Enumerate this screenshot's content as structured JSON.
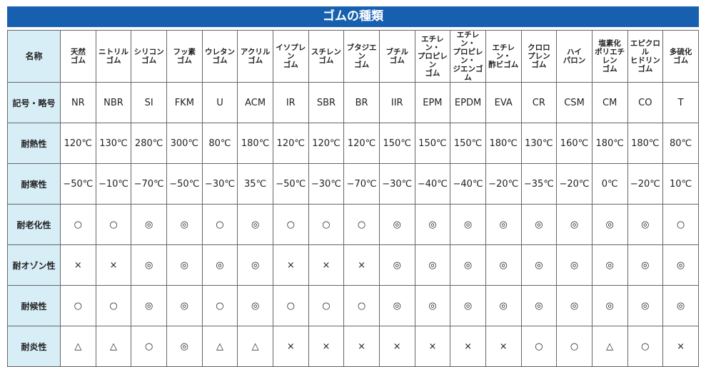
{
  "title": "ゴムの種類",
  "table": {
    "rows": [
      [
        "名称",
        "天然\nゴム",
        "ニトリル\nゴム",
        "シリコン\nゴム",
        "フッ素\nゴム",
        "ウレタン\nゴム",
        "アクリル\nゴム",
        "イソプレン\nゴム",
        "スチレン\nゴム",
        "ブタジエン\nゴム",
        "ブチル\nゴム",
        "エチレン・\nプロピレン\nゴム",
        "エチレン・\nプロピレン・\nジエンゴム",
        "エチレン・\n酢ビゴム",
        "クロロ\nプレン\nゴム",
        "ハイ\nパロン",
        "塩素化\nポリエチレン\nゴム",
        "エピクロル\nヒドリン\nゴム",
        "多硫化\nゴム"
      ],
      [
        "記号・略号",
        "NR",
        "NBR",
        "SI",
        "FKM",
        "U",
        "ACM",
        "IR",
        "SBR",
        "BR",
        "IIR",
        "EPM",
        "EPDM",
        "EVA",
        "CR",
        "CSM",
        "CM",
        "CO",
        "T"
      ],
      [
        "耐熱性",
        "120℃",
        "130℃",
        "280℃",
        "300℃",
        "80℃",
        "180℃",
        "120℃",
        "120℃",
        "120℃",
        "150℃",
        "150℃",
        "150℃",
        "180℃",
        "130℃",
        "160℃",
        "180℃",
        "180℃",
        "80℃"
      ],
      [
        "耐寒性",
        "−50℃",
        "−10℃",
        "−70℃",
        "−50℃",
        "−30℃",
        "35℃",
        "−50℃",
        "−30℃",
        "−70℃",
        "−30℃",
        "−40℃",
        "−40℃",
        "−20℃",
        "−35℃",
        "−20℃",
        "0℃",
        "−20℃",
        "10℃"
      ],
      [
        "耐老化性",
        "○",
        "○",
        "◎",
        "◎",
        "○",
        "◎",
        "○",
        "○",
        "○",
        "◎",
        "◎",
        "◎",
        "◎",
        "◎",
        "◎",
        "◎",
        "◎",
        "○"
      ],
      [
        "耐オゾン性",
        "×",
        "×",
        "◎",
        "◎",
        "◎",
        "◎",
        "×",
        "×",
        "×",
        "◎",
        "◎",
        "◎",
        "◎",
        "◎",
        "◎",
        "◎",
        "◎",
        "◎"
      ],
      [
        "耐候性",
        "○",
        "○",
        "◎",
        "◎",
        "○",
        "◎",
        "○",
        "○",
        "○",
        "◎",
        "◎",
        "◎",
        "◎",
        "◎",
        "◎",
        "◎",
        "◎",
        "◎"
      ],
      [
        "耐炎性",
        "△",
        "△",
        "○",
        "◎",
        "△",
        "△",
        "×",
        "×",
        "×",
        "×",
        "×",
        "×",
        "×",
        "○",
        "○",
        "△",
        "○",
        "×"
      ]
    ]
  }
}
